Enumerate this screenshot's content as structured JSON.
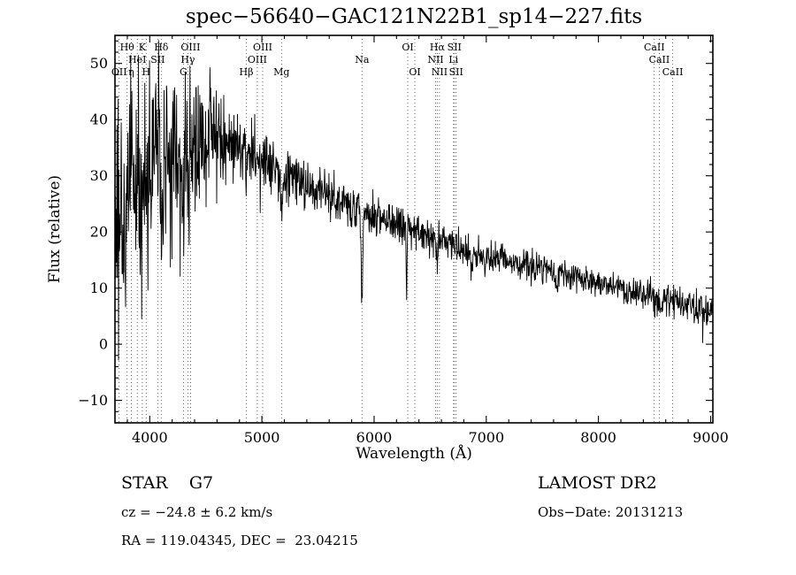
{
  "title": "spec−56640−GAC121N22B1_sp14−227.fits",
  "footer": {
    "object_class": "STAR    G7",
    "cz": "cz = −24.8 ± 6.2 km/s",
    "ra_dec": "RA = 119.04345, DEC =  23.04215",
    "survey": "LAMOST DR2",
    "obs_date": "Obs−Date: 20131213"
  },
  "chart_data": {
    "type": "line",
    "title": "spec−56640−GAC121N22B1_sp14−227.fits",
    "xlabel": "Wavelength (Å)",
    "ylabel": "Flux (relative)",
    "xlim": [
      3690,
      9020
    ],
    "ylim": [
      -14,
      55
    ],
    "xticks": [
      4000,
      5000,
      6000,
      7000,
      8000,
      9000
    ],
    "yticks": [
      -10,
      0,
      10,
      20,
      30,
      40,
      50
    ],
    "x_minor_step": 200,
    "y_minor_step": 2,
    "grid": "off",
    "line_color": "#000000",
    "background": "#ffffff",
    "sample_step": 3.5,
    "noise_seed": 123456,
    "spectral_lines": [
      {
        "label": "Hθ",
        "wavelength": 3798,
        "row": 1
      },
      {
        "label": "K",
        "wavelength": 3934,
        "row": 1
      },
      {
        "label": "Hδ",
        "wavelength": 4102,
        "row": 1
      },
      {
        "label": "OIII",
        "wavelength": 4363,
        "row": 1
      },
      {
        "label": "OIII",
        "wavelength": 5007,
        "row": 1
      },
      {
        "label": "OI",
        "wavelength": 6300,
        "row": 1
      },
      {
        "label": "Hα",
        "wavelength": 6563,
        "row": 1
      },
      {
        "label": "SII",
        "wavelength": 6716,
        "row": 1
      },
      {
        "label": "CaII",
        "wavelength": 8498,
        "row": 1
      },
      {
        "label": "HeI",
        "wavelength": 3889,
        "row": 2
      },
      {
        "label": "SII",
        "wavelength": 4072,
        "row": 2
      },
      {
        "label": "Hγ",
        "wavelength": 4340,
        "row": 2
      },
      {
        "label": "OIII",
        "wavelength": 4959,
        "row": 2
      },
      {
        "label": "Na",
        "wavelength": 5892,
        "row": 2
      },
      {
        "label": "NII",
        "wavelength": 6548,
        "row": 2
      },
      {
        "label": "Li",
        "wavelength": 6708,
        "row": 2
      },
      {
        "label": "CaII",
        "wavelength": 8542,
        "row": 2
      },
      {
        "label": "OII",
        "wavelength": 3727,
        "row": 3
      },
      {
        "label": "η",
        "wavelength": 3835,
        "row": 3
      },
      {
        "label": "H",
        "wavelength": 3968,
        "row": 3
      },
      {
        "label": "G",
        "wavelength": 4300,
        "row": 3
      },
      {
        "label": "Hβ",
        "wavelength": 4861,
        "row": 3
      },
      {
        "label": "Mg",
        "wavelength": 5175,
        "row": 3
      },
      {
        "label": "OI",
        "wavelength": 6363,
        "row": 3
      },
      {
        "label": "NII",
        "wavelength": 6583,
        "row": 3
      },
      {
        "label": "SII",
        "wavelength": 6731,
        "row": 3
      },
      {
        "label": "CaII",
        "wavelength": 8662,
        "row": 3
      }
    ],
    "continuum": [
      [
        3690,
        22
      ],
      [
        3780,
        28
      ],
      [
        3900,
        31
      ],
      [
        4100,
        33
      ],
      [
        4300,
        34
      ],
      [
        4500,
        35
      ],
      [
        4700,
        36.5
      ],
      [
        4900,
        33.5
      ],
      [
        5100,
        31
      ],
      [
        5300,
        29
      ],
      [
        5500,
        27.5
      ],
      [
        5700,
        25.5
      ],
      [
        5900,
        23.5
      ],
      [
        6100,
        22
      ],
      [
        6300,
        21
      ],
      [
        6500,
        19
      ],
      [
        6700,
        18
      ],
      [
        6900,
        16.5
      ],
      [
        7100,
        15.5
      ],
      [
        7300,
        14.5
      ],
      [
        7500,
        13.5
      ],
      [
        7700,
        12.5
      ],
      [
        7900,
        11.5
      ],
      [
        8100,
        10.5
      ],
      [
        8300,
        9.5
      ],
      [
        8500,
        8.5
      ],
      [
        8700,
        7.5
      ],
      [
        8900,
        6.2
      ],
      [
        9020,
        5
      ]
    ],
    "noise_profile": [
      [
        3690,
        13
      ],
      [
        3800,
        12
      ],
      [
        3900,
        11
      ],
      [
        4000,
        10
      ],
      [
        4150,
        9
      ],
      [
        4300,
        7.5
      ],
      [
        4500,
        5.5
      ],
      [
        4700,
        4
      ],
      [
        4900,
        3.2
      ],
      [
        5100,
        2.8
      ],
      [
        5400,
        2.3
      ],
      [
        5800,
        2
      ],
      [
        6200,
        1.7
      ],
      [
        6600,
        1.5
      ],
      [
        7000,
        1.4
      ],
      [
        7600,
        1.3
      ],
      [
        8200,
        1.3
      ],
      [
        8800,
        1.5
      ],
      [
        9020,
        1.7
      ]
    ],
    "absorption_features": [
      {
        "wavelength": 3934,
        "depth": 12,
        "sigma": 6
      },
      {
        "wavelength": 3968,
        "depth": 10,
        "sigma": 6
      },
      {
        "wavelength": 4102,
        "depth": 8,
        "sigma": 5
      },
      {
        "wavelength": 4300,
        "depth": 5,
        "sigma": 8
      },
      {
        "wavelength": 4340,
        "depth": 7,
        "sigma": 5
      },
      {
        "wavelength": 4861,
        "depth": 7,
        "sigma": 5
      },
      {
        "wavelength": 5175,
        "depth": 3.5,
        "sigma": 12
      },
      {
        "wavelength": 5892,
        "depth": 17,
        "sigma": 6
      },
      {
        "wavelength": 6290,
        "depth": 13,
        "sigma": 3
      },
      {
        "wavelength": 6563,
        "depth": 4,
        "sigma": 5
      },
      {
        "wavelength": 6870,
        "depth": 3.5,
        "sigma": 8
      },
      {
        "wavelength": 7620,
        "depth": 3,
        "sigma": 10
      },
      {
        "wavelength": 8498,
        "depth": 2,
        "sigma": 4
      },
      {
        "wavelength": 8542,
        "depth": 2.5,
        "sigma": 4
      },
      {
        "wavelength": 8662,
        "depth": 2,
        "sigma": 4
      }
    ]
  }
}
